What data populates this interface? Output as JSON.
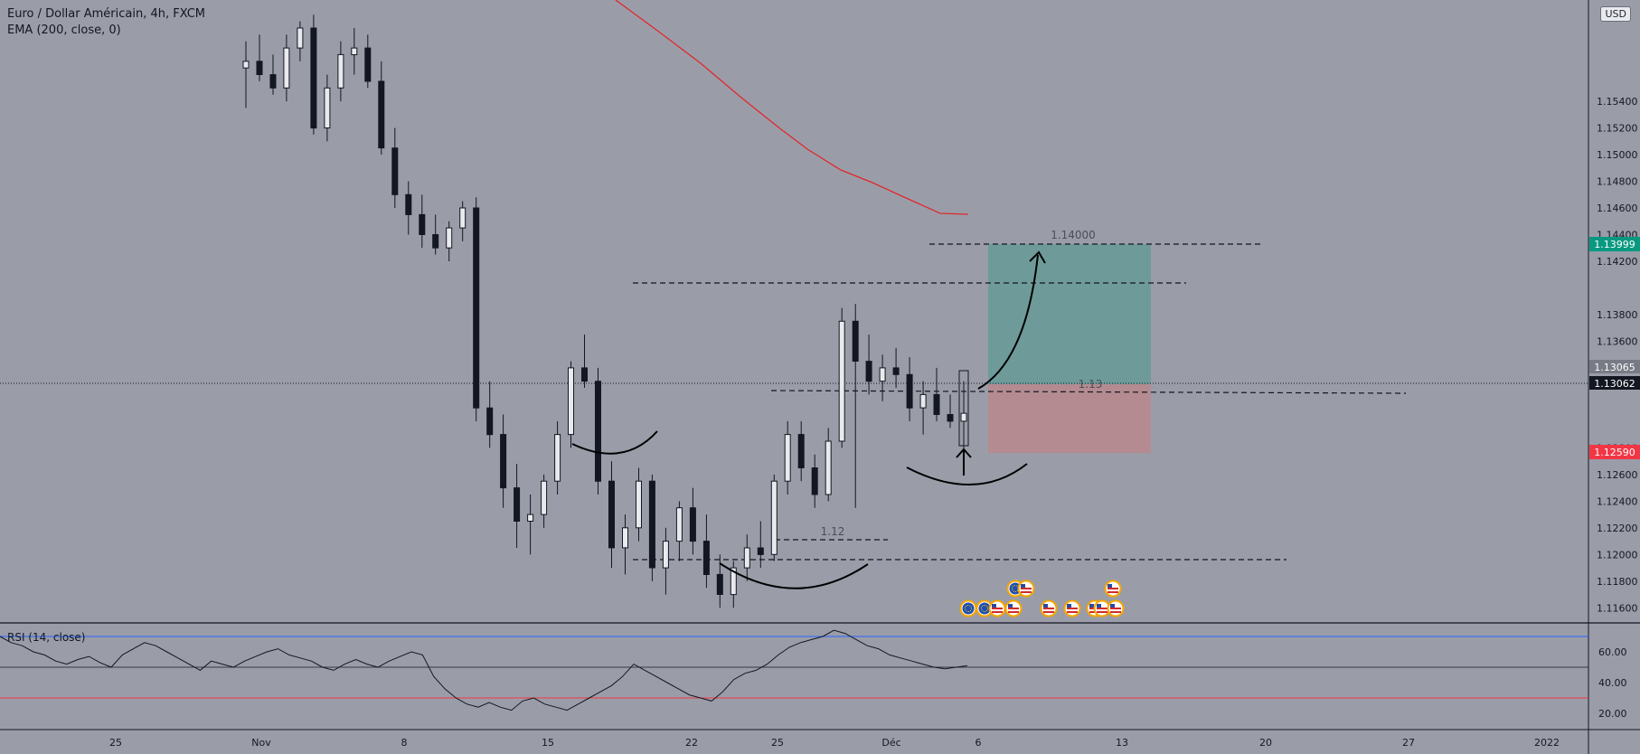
{
  "header": {
    "symbol_title": "Euro / Dollar Américain, 4h, FXCM",
    "indicator_title": "EMA (200, close, 0)",
    "currency_button": "USD"
  },
  "rsi_panel": {
    "title": "RSI (14, close)",
    "ticks": [
      "60.00",
      "40.00",
      "20.00"
    ],
    "upper_band": 70,
    "lower_band": 30,
    "mid_line": 50,
    "colors": {
      "upper": "#2962ff",
      "lower": "#f23645",
      "line": "#131722"
    }
  },
  "colors": {
    "background": "#9a9da8",
    "ema": "#e0282e",
    "candle": "#131722",
    "target_zone": "#5f9b96",
    "stop_zone": "#b8888c",
    "target_badge": "#089981",
    "stop_badge": "#f23645",
    "last_price_badge": "#131722",
    "prev_close_badge": "#787b86"
  },
  "chart_data": {
    "type": "candlestick",
    "title": "Euro / Dollar Américain, 4h, FXCM",
    "ylim": [
      1.1148,
      1.1616
    ],
    "y_ticks": [
      "1.15400",
      "1.15200",
      "1.15000",
      "1.14800",
      "1.14600",
      "1.14400",
      "1.14200",
      "1.13800",
      "1.13600",
      "1.13400",
      "1.12800",
      "1.12600",
      "1.12400",
      "1.12200",
      "1.12000",
      "1.11800",
      "1.11600"
    ],
    "x_ticks": [
      "25",
      "Nov",
      "8",
      "15",
      "22",
      "25",
      "Déc",
      "6",
      "13",
      "20",
      "27",
      "2022"
    ],
    "price_labels": [
      {
        "label": "1.13999",
        "kind": "target"
      },
      {
        "label": "1.13065",
        "kind": "prev_close"
      },
      {
        "label": "1.13062",
        "kind": "last"
      },
      {
        "label": "1.12590",
        "kind": "stop"
      }
    ],
    "last_price": 1.13062,
    "series": [
      {
        "name": "EMA (200, close, 0)",
        "kind": "line",
        "points": [
          [
            "Nov 14",
            1.1647
          ],
          [
            "Nov 17",
            1.1613
          ],
          [
            "Nov 20",
            1.1578
          ],
          [
            "Nov 23",
            1.1541
          ],
          [
            "Nov 26",
            1.151
          ],
          [
            "Nov 29",
            1.147
          ],
          [
            "Dec 2",
            1.1444
          ],
          [
            "Dec 5",
            1.1421
          ]
        ]
      }
    ],
    "candles_ohlc": [
      [
        1.1565,
        1.1585,
        1.1535,
        1.157
      ],
      [
        1.157,
        1.159,
        1.1555,
        1.156
      ],
      [
        1.156,
        1.1575,
        1.1545,
        1.155
      ],
      [
        1.155,
        1.159,
        1.154,
        1.158
      ],
      [
        1.158,
        1.16,
        1.157,
        1.1595
      ],
      [
        1.1595,
        1.1605,
        1.1515,
        1.152
      ],
      [
        1.152,
        1.156,
        1.151,
        1.155
      ],
      [
        1.155,
        1.1585,
        1.154,
        1.1575
      ],
      [
        1.1575,
        1.1595,
        1.156,
        1.158
      ],
      [
        1.158,
        1.159,
        1.155,
        1.1555
      ],
      [
        1.1555,
        1.157,
        1.15,
        1.1505
      ],
      [
        1.1505,
        1.152,
        1.146,
        1.147
      ],
      [
        1.147,
        1.148,
        1.144,
        1.1455
      ],
      [
        1.1455,
        1.147,
        1.143,
        1.144
      ],
      [
        1.144,
        1.1455,
        1.1425,
        1.143
      ],
      [
        1.143,
        1.145,
        1.142,
        1.1445
      ],
      [
        1.1445,
        1.1465,
        1.1435,
        1.146
      ],
      [
        1.146,
        1.1468,
        1.13,
        1.131
      ],
      [
        1.131,
        1.133,
        1.128,
        1.129
      ],
      [
        1.129,
        1.1305,
        1.1235,
        1.125
      ],
      [
        1.125,
        1.1268,
        1.1205,
        1.1225
      ],
      [
        1.1225,
        1.1245,
        1.12,
        1.123
      ],
      [
        1.123,
        1.126,
        1.122,
        1.1255
      ],
      [
        1.1255,
        1.13,
        1.1245,
        1.129
      ],
      [
        1.129,
        1.1345,
        1.128,
        1.134
      ],
      [
        1.134,
        1.1365,
        1.1325,
        1.133
      ],
      [
        1.133,
        1.134,
        1.1245,
        1.1255
      ],
      [
        1.1255,
        1.127,
        1.119,
        1.1205
      ],
      [
        1.1205,
        1.123,
        1.1185,
        1.122
      ],
      [
        1.122,
        1.1265,
        1.121,
        1.1255
      ],
      [
        1.1255,
        1.126,
        1.118,
        1.119
      ],
      [
        1.119,
        1.122,
        1.117,
        1.121
      ],
      [
        1.121,
        1.124,
        1.1195,
        1.1235
      ],
      [
        1.1235,
        1.125,
        1.12,
        1.121
      ],
      [
        1.121,
        1.123,
        1.1175,
        1.1185
      ],
      [
        1.1185,
        1.12,
        1.116,
        1.117
      ],
      [
        1.117,
        1.1195,
        1.116,
        1.119
      ],
      [
        1.119,
        1.1215,
        1.118,
        1.1205
      ],
      [
        1.1205,
        1.1225,
        1.119,
        1.12
      ],
      [
        1.12,
        1.126,
        1.1195,
        1.1255
      ],
      [
        1.1255,
        1.13,
        1.1245,
        1.129
      ],
      [
        1.129,
        1.13,
        1.1255,
        1.1265
      ],
      [
        1.1265,
        1.1275,
        1.1235,
        1.1245
      ],
      [
        1.1245,
        1.1295,
        1.124,
        1.1285
      ],
      [
        1.1285,
        1.1385,
        1.128,
        1.1375
      ],
      [
        1.1375,
        1.1388,
        1.1235,
        1.1345
      ],
      [
        1.1345,
        1.1365,
        1.132,
        1.133
      ],
      [
        1.133,
        1.135,
        1.1315,
        1.134
      ],
      [
        1.134,
        1.1355,
        1.1325,
        1.1335
      ],
      [
        1.1335,
        1.1348,
        1.13,
        1.131
      ],
      [
        1.131,
        1.133,
        1.129,
        1.132
      ],
      [
        1.132,
        1.134,
        1.13,
        1.1305
      ],
      [
        1.1305,
        1.132,
        1.1295,
        1.13
      ],
      [
        1.13,
        1.133,
        1.1265,
        1.1306
      ]
    ]
  },
  "annotations": {
    "target_level_label": "1.14000",
    "entry_level_label": "1.13",
    "support_level_label": "1.12"
  },
  "event_markers": {
    "row1": [
      "eu",
      "us",
      "us"
    ],
    "row2": [
      "eu",
      "eu",
      "us",
      "us",
      "us",
      "us",
      "us",
      "us"
    ],
    "row2b": [
      "us"
    ]
  }
}
